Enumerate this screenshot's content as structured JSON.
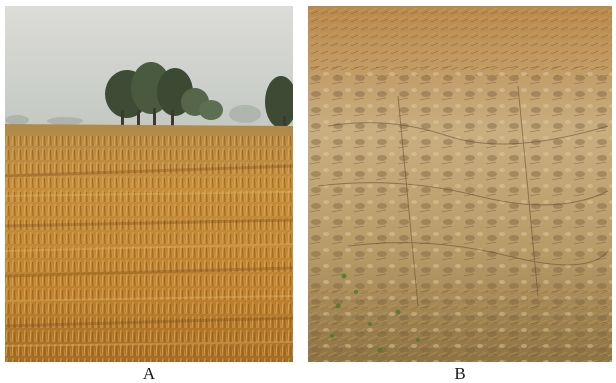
{
  "figure": {
    "panels": [
      {
        "id": "A",
        "label": "A"
      },
      {
        "id": "B",
        "label": "B"
      }
    ]
  },
  "colors": {
    "sky_top": "#d9d9d5",
    "sky_bottom": "#c4c8c4",
    "tree_dark": "#3c4a34",
    "tree_mid": "#56664a",
    "straw_light": "#d9a34e",
    "straw_mid": "#b97a2e",
    "straw_dark": "#7a4e1c",
    "soil_light": "#c8ad7c",
    "soil_mid": "#a8895a",
    "soil_dark": "#6e5a38",
    "weed_green": "#4f7a2e"
  }
}
